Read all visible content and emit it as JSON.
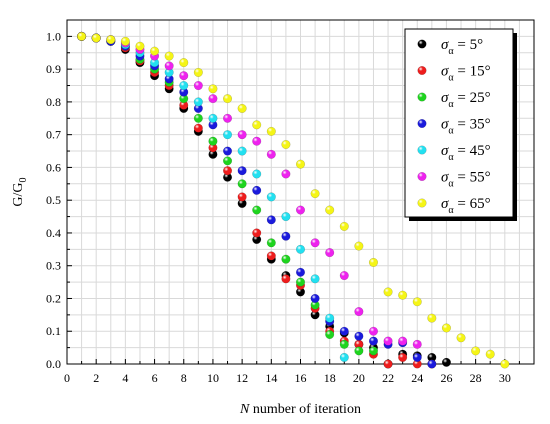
{
  "chart_data": {
    "type": "scatter",
    "title": "",
    "xlabel": "N number of iteration",
    "ylabel": "G/G0",
    "xlim": [
      0,
      32
    ],
    "ylim": [
      0,
      1.05
    ],
    "xticks": [
      0,
      2,
      4,
      6,
      8,
      10,
      12,
      14,
      16,
      18,
      20,
      22,
      24,
      26,
      28,
      30
    ],
    "yticks": [
      0.0,
      0.1,
      0.2,
      0.3,
      0.4,
      0.5,
      0.6,
      0.7,
      0.8,
      0.9,
      1.0
    ],
    "grid": true,
    "legend_position": "top-right",
    "series": [
      {
        "name": "σα = 5°",
        "sigma": "5°",
        "color": "#000000",
        "x": [
          1,
          2,
          3,
          4,
          5,
          6,
          7,
          8,
          9,
          10,
          11,
          12,
          13,
          14,
          15,
          16,
          17,
          18,
          19,
          20,
          21,
          22,
          23,
          24,
          25,
          26
        ],
        "y": [
          1.0,
          0.995,
          0.985,
          0.96,
          0.92,
          0.88,
          0.84,
          0.78,
          0.71,
          0.64,
          0.57,
          0.49,
          0.38,
          0.32,
          0.27,
          0.22,
          0.15,
          0.115,
          0.095,
          0.06,
          0.05,
          0.0,
          0.03,
          0.025,
          0.02,
          0.005
        ]
      },
      {
        "name": "σα = 15°",
        "sigma": "15°",
        "color": "#ee1c1c",
        "x": [
          1,
          2,
          3,
          4,
          5,
          6,
          7,
          8,
          9,
          10,
          11,
          12,
          13,
          14,
          15,
          16,
          17,
          18,
          19,
          20,
          21,
          22,
          23,
          24,
          25
        ],
        "y": [
          1.0,
          0.995,
          0.985,
          0.965,
          0.925,
          0.89,
          0.85,
          0.79,
          0.72,
          0.66,
          0.59,
          0.51,
          0.4,
          0.33,
          0.26,
          0.24,
          0.17,
          0.1,
          0.07,
          0.06,
          0.03,
          0.0,
          0.02,
          0.0,
          0.0
        ]
      },
      {
        "name": "σα = 25°",
        "sigma": "25°",
        "color": "#1ed41e",
        "x": [
          1,
          2,
          3,
          4,
          5,
          6,
          7,
          8,
          9,
          10,
          11,
          12,
          13,
          14,
          15,
          16,
          17,
          18,
          19,
          20,
          21
        ],
        "y": [
          1.0,
          0.995,
          0.985,
          0.97,
          0.93,
          0.9,
          0.86,
          0.81,
          0.75,
          0.68,
          0.62,
          0.55,
          0.47,
          0.37,
          0.32,
          0.25,
          0.18,
          0.09,
          0.06,
          0.04,
          0.04
        ]
      },
      {
        "name": "σα = 35°",
        "sigma": "35°",
        "color": "#1a1adc",
        "x": [
          1,
          2,
          3,
          4,
          5,
          6,
          7,
          8,
          9,
          10,
          11,
          12,
          13,
          14,
          15,
          16,
          17,
          18,
          19,
          20,
          21,
          22,
          23,
          24,
          25
        ],
        "y": [
          1.0,
          0.995,
          0.985,
          0.97,
          0.94,
          0.91,
          0.87,
          0.83,
          0.78,
          0.73,
          0.65,
          0.59,
          0.53,
          0.44,
          0.39,
          0.28,
          0.2,
          0.13,
          0.1,
          0.085,
          0.07,
          0.06,
          0.065,
          0.02,
          0.0
        ]
      },
      {
        "name": "σα = 45°",
        "sigma": "45°",
        "color": "#22e0f0",
        "x": [
          1,
          2,
          3,
          4,
          5,
          6,
          7,
          8,
          9,
          10,
          11,
          12,
          13,
          14,
          15,
          16,
          17,
          18,
          19
        ],
        "y": [
          1.0,
          0.995,
          0.99,
          0.975,
          0.95,
          0.92,
          0.89,
          0.85,
          0.8,
          0.75,
          0.7,
          0.65,
          0.58,
          0.51,
          0.45,
          0.35,
          0.26,
          0.14,
          0.02
        ]
      },
      {
        "name": "σα = 55°",
        "sigma": "55°",
        "color": "#ee22ee",
        "x": [
          1,
          2,
          3,
          4,
          5,
          6,
          7,
          8,
          9,
          10,
          11,
          12,
          13,
          14,
          15,
          16,
          17,
          18,
          19,
          20,
          21,
          22,
          23,
          24
        ],
        "y": [
          1.0,
          0.995,
          0.99,
          0.98,
          0.96,
          0.94,
          0.91,
          0.88,
          0.85,
          0.81,
          0.75,
          0.7,
          0.68,
          0.64,
          0.58,
          0.47,
          0.37,
          0.34,
          0.27,
          0.16,
          0.1,
          0.07,
          0.07,
          0.06
        ]
      },
      {
        "name": "σα = 65°",
        "sigma": "65°",
        "color": "#f5f516",
        "x": [
          1,
          2,
          3,
          4,
          5,
          6,
          7,
          8,
          9,
          10,
          11,
          12,
          13,
          14,
          15,
          16,
          17,
          18,
          19,
          20,
          21,
          22,
          23,
          24,
          25,
          26,
          27,
          28,
          29,
          30
        ],
        "y": [
          1.0,
          0.995,
          0.99,
          0.985,
          0.97,
          0.955,
          0.94,
          0.92,
          0.89,
          0.84,
          0.81,
          0.78,
          0.73,
          0.71,
          0.67,
          0.61,
          0.52,
          0.47,
          0.42,
          0.36,
          0.31,
          0.22,
          0.21,
          0.19,
          0.14,
          0.11,
          0.08,
          0.04,
          0.03,
          0.0
        ]
      }
    ]
  }
}
